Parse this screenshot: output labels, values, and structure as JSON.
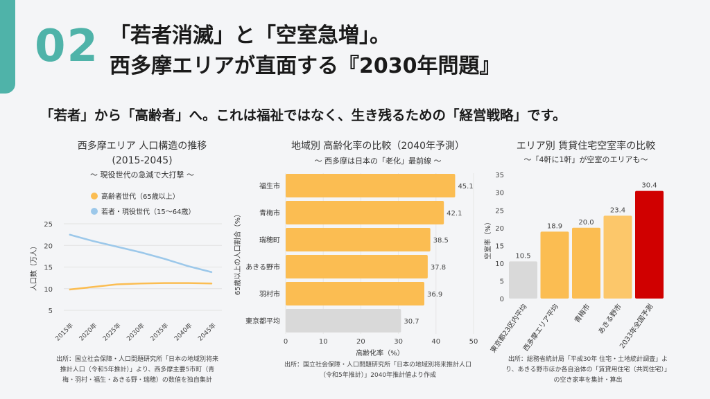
{
  "header": {
    "number": "02",
    "title_line1": "「若者消滅」と「空室急増」。",
    "title_line2": "西多摩エリアが直面する『2030年問題』",
    "subtitle": "「若者」から「高齢者」へ。これは福祉ではなく、生き残るための「経営戦略」です。"
  },
  "colors": {
    "accent": "#4fb3a9",
    "orange": "#fbbd52",
    "blue": "#9cc8ea",
    "gray": "#d9d9d9",
    "red": "#d00000"
  },
  "chart_data": [
    {
      "type": "line",
      "title": "西多摩エリア 人口構造の推移",
      "title2": "(2015-2045)",
      "subtitle": "～ 現役世代の急減で大打撃 ～",
      "ylabel": "人口数（万人）",
      "ylim": [
        5,
        25
      ],
      "yticks": [
        5,
        10,
        15,
        20,
        25
      ],
      "categories": [
        "2015年",
        "2020年",
        "2025年",
        "2030年",
        "2035年",
        "2040年",
        "2045年"
      ],
      "series": [
        {
          "name": "高齢者世代（65歳以上）",
          "color": "#fbbd52",
          "values": [
            9.8,
            10.4,
            11.0,
            11.2,
            11.3,
            11.3,
            11.2
          ]
        },
        {
          "name": "若者・現役世代（15〜64歳）",
          "color": "#9cc8ea",
          "values": [
            22.5,
            21.0,
            19.7,
            18.4,
            16.9,
            15.2,
            13.8
          ]
        }
      ],
      "source": "出所：国立社会保障・人口問題研究所「日本の地域別将来推計人口（令和5年推計）」より、西多摩主要5市町（青梅・羽村・福生・あきる野・瑞穂）の数値を独自集計"
    },
    {
      "type": "bar",
      "orientation": "horizontal",
      "title": "地域別 高齢化率の比較（2040年予測）",
      "subtitle": "～ 西多摩は日本の「老化」最前線 ～",
      "xlabel": "高齢化率（%）",
      "ylabel": "65歳以上の人口割合（%）",
      "xlim": [
        0,
        50
      ],
      "xticks": [
        0,
        10,
        20,
        30,
        40,
        50
      ],
      "categories": [
        "福生市",
        "青梅市",
        "瑞穂町",
        "あきる野市",
        "羽村市",
        "東京都平均"
      ],
      "values": [
        45.1,
        42.1,
        38.5,
        37.8,
        36.9,
        30.7
      ],
      "source": "出所：国立社会保障・人口問題研究所「日本の地域別将来推計人口（令和5年推計）」2040年推計値より作成"
    },
    {
      "type": "bar",
      "title": "エリア別 賃貸住宅空室率の比較",
      "subtitle": "～「4軒に1軒」が空室のエリアも～",
      "ylabel": "空室率（%）",
      "ylim": [
        0,
        35
      ],
      "yticks": [
        0,
        5,
        10,
        15,
        20,
        25,
        30,
        35
      ],
      "categories": [
        "東京都23区内平均",
        "西多摩エリア平均",
        "青梅市",
        "あきる野市",
        "2033年全国予測"
      ],
      "values": [
        10.5,
        18.9,
        20.0,
        23.4,
        30.4
      ],
      "source": "出所：総務省統計局「平成30年 住宅・土地統計調査」より、あきる野市ほか各自治体の「賃貸用住宅（共同住宅）」の空き家率を集計・算出"
    }
  ]
}
